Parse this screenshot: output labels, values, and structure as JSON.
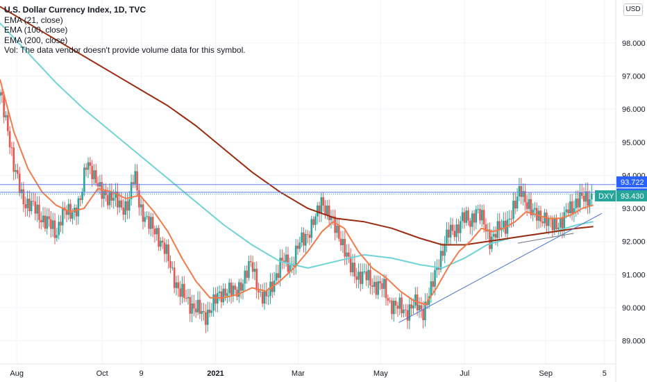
{
  "legend": {
    "title": "U.S. Dollar Currency Index, 1D, TVC",
    "ema21": "EMA (21, close)",
    "ema100": "EMA (100, close)",
    "ema200": "EMA (200, close)",
    "vol": "Vol: The data vendor doesn't provide volume data for this symbol."
  },
  "currency_badge": "USD",
  "colors": {
    "up": "#26a69a",
    "down": "#ef5350",
    "ema21": "#f27a4a",
    "ema100": "#6fd3d6",
    "ema200": "#9b2a0f",
    "trendline": "#4a6fd6",
    "hline": "#5b7bf0",
    "dxy_label": "#26a69a",
    "level_label": "#2962ff"
  },
  "chart_data": {
    "type": "candlestick",
    "symbol": "DXY",
    "ylim": [
      88.3,
      99.3
    ],
    "y_ticks": [
      "89.000",
      "90.000",
      "91.000",
      "92.000",
      "93.000",
      "94.000",
      "95.000",
      "96.000",
      "97.000",
      "98.000"
    ],
    "x_ticks": [
      "Aug",
      "Oct",
      "9",
      "2021",
      "Mar",
      "May",
      "Jul",
      "Sep",
      "5"
    ],
    "x_tick_days": [
      12,
      73,
      101,
      154,
      213,
      272,
      332,
      390,
      432
    ],
    "x_lim_days": [
      0,
      440
    ],
    "price_labels": {
      "upper_level": "93.722",
      "lower_level": "93.488",
      "last_price": "93.430",
      "symbol": "DXY"
    },
    "levels": [
      93.722,
      93.488
    ],
    "last_price": 93.43,
    "trendline": {
      "from": {
        "day": 285,
        "price": 89.55
      },
      "to": {
        "day": 430,
        "price": 92.85
      }
    },
    "support_line": {
      "from": {
        "day": 370,
        "price": 91.95
      },
      "to": {
        "day": 410,
        "price": 92.25
      }
    },
    "close_path": [
      [
        0,
        96.4
      ],
      [
        6,
        95.4
      ],
      [
        10,
        94.2
      ],
      [
        16,
        93.3
      ],
      [
        22,
        93.1
      ],
      [
        28,
        92.8
      ],
      [
        34,
        92.6
      ],
      [
        40,
        92.2
      ],
      [
        44,
        92.9
      ],
      [
        50,
        92.8
      ],
      [
        58,
        93.3
      ],
      [
        62,
        94.4
      ],
      [
        66,
        94.2
      ],
      [
        72,
        93.4
      ],
      [
        80,
        93.4
      ],
      [
        86,
        93.0
      ],
      [
        92,
        93.2
      ],
      [
        96,
        94.0
      ],
      [
        100,
        93.1
      ],
      [
        106,
        92.5
      ],
      [
        112,
        92.3
      ],
      [
        118,
        91.7
      ],
      [
        124,
        91.0
      ],
      [
        128,
        90.5
      ],
      [
        134,
        90.2
      ],
      [
        140,
        90.0
      ],
      [
        146,
        89.7
      ],
      [
        150,
        90.0
      ],
      [
        156,
        90.3
      ],
      [
        162,
        90.6
      ],
      [
        168,
        90.4
      ],
      [
        174,
        90.9
      ],
      [
        180,
        91.3
      ],
      [
        186,
        90.4
      ],
      [
        190,
        90.2
      ],
      [
        196,
        90.9
      ],
      [
        202,
        91.4
      ],
      [
        208,
        91.3
      ],
      [
        214,
        91.9
      ],
      [
        220,
        92.3
      ],
      [
        226,
        92.7
      ],
      [
        230,
        93.3
      ],
      [
        234,
        92.9
      ],
      [
        238,
        92.5
      ],
      [
        244,
        92.1
      ],
      [
        250,
        91.2
      ],
      [
        256,
        91.0
      ],
      [
        262,
        90.9
      ],
      [
        268,
        90.7
      ],
      [
        274,
        90.6
      ],
      [
        278,
        90.2
      ],
      [
        284,
        90.0
      ],
      [
        290,
        89.9
      ],
      [
        296,
        90.1
      ],
      [
        302,
        89.9
      ],
      [
        308,
        90.5
      ],
      [
        314,
        91.5
      ],
      [
        320,
        92.2
      ],
      [
        326,
        92.4
      ],
      [
        330,
        92.7
      ],
      [
        336,
        92.6
      ],
      [
        340,
        93.0
      ],
      [
        346,
        92.5
      ],
      [
        350,
        92.1
      ],
      [
        356,
        92.3
      ],
      [
        362,
        92.6
      ],
      [
        368,
        93.0
      ],
      [
        372,
        93.7
      ],
      [
        376,
        93.2
      ],
      [
        380,
        92.8
      ],
      [
        384,
        92.9
      ],
      [
        388,
        92.7
      ],
      [
        392,
        92.5
      ],
      [
        398,
        92.6
      ],
      [
        402,
        92.5
      ],
      [
        406,
        93.0
      ],
      [
        412,
        93.2
      ],
      [
        418,
        93.3
      ],
      [
        424,
        93.43
      ]
    ],
    "ema21_path": [
      [
        0,
        96.9
      ],
      [
        10,
        95.3
      ],
      [
        20,
        94.2
      ],
      [
        30,
        93.5
      ],
      [
        40,
        93.1
      ],
      [
        50,
        92.9
      ],
      [
        60,
        93.0
      ],
      [
        70,
        93.6
      ],
      [
        80,
        93.5
      ],
      [
        90,
        93.3
      ],
      [
        100,
        93.4
      ],
      [
        110,
        92.9
      ],
      [
        120,
        92.3
      ],
      [
        130,
        91.5
      ],
      [
        140,
        90.8
      ],
      [
        150,
        90.3
      ],
      [
        160,
        90.3
      ],
      [
        170,
        90.4
      ],
      [
        180,
        90.6
      ],
      [
        190,
        90.5
      ],
      [
        200,
        90.8
      ],
      [
        210,
        91.2
      ],
      [
        220,
        91.7
      ],
      [
        230,
        92.3
      ],
      [
        238,
        92.6
      ],
      [
        246,
        92.4
      ],
      [
        256,
        91.7
      ],
      [
        266,
        91.2
      ],
      [
        276,
        90.9
      ],
      [
        286,
        90.5
      ],
      [
        296,
        90.2
      ],
      [
        304,
        90.1
      ],
      [
        312,
        90.6
      ],
      [
        320,
        91.2
      ],
      [
        328,
        91.7
      ],
      [
        336,
        92.0
      ],
      [
        344,
        92.4
      ],
      [
        352,
        92.3
      ],
      [
        360,
        92.4
      ],
      [
        368,
        92.6
      ],
      [
        376,
        92.9
      ],
      [
        384,
        92.8
      ],
      [
        392,
        92.7
      ],
      [
        400,
        92.7
      ],
      [
        408,
        92.8
      ],
      [
        416,
        93.0
      ],
      [
        424,
        93.1
      ]
    ],
    "ema100_path": [
      [
        0,
        98.6
      ],
      [
        20,
        97.7
      ],
      [
        40,
        96.8
      ],
      [
        60,
        96.0
      ],
      [
        80,
        95.3
      ],
      [
        100,
        94.6
      ],
      [
        120,
        93.9
      ],
      [
        140,
        93.2
      ],
      [
        160,
        92.5
      ],
      [
        180,
        91.9
      ],
      [
        200,
        91.4
      ],
      [
        220,
        91.2
      ],
      [
        240,
        91.4
      ],
      [
        260,
        91.6
      ],
      [
        280,
        91.5
      ],
      [
        300,
        91.3
      ],
      [
        316,
        91.2
      ],
      [
        332,
        91.5
      ],
      [
        348,
        91.9
      ],
      [
        364,
        92.1
      ],
      [
        380,
        92.2
      ],
      [
        396,
        92.3
      ],
      [
        412,
        92.5
      ],
      [
        424,
        92.6
      ]
    ],
    "ema200_path": [
      [
        0,
        99.1
      ],
      [
        20,
        98.6
      ],
      [
        40,
        98.1
      ],
      [
        60,
        97.6
      ],
      [
        80,
        97.1
      ],
      [
        100,
        96.6
      ],
      [
        120,
        96.1
      ],
      [
        140,
        95.5
      ],
      [
        160,
        94.8
      ],
      [
        180,
        94.1
      ],
      [
        200,
        93.5
      ],
      [
        220,
        93.0
      ],
      [
        240,
        92.7
      ],
      [
        260,
        92.6
      ],
      [
        280,
        92.4
      ],
      [
        300,
        92.1
      ],
      [
        316,
        91.9
      ],
      [
        332,
        91.9
      ],
      [
        348,
        92.0
      ],
      [
        364,
        92.1
      ],
      [
        380,
        92.2
      ],
      [
        396,
        92.3
      ],
      [
        412,
        92.4
      ],
      [
        424,
        92.45
      ]
    ]
  }
}
